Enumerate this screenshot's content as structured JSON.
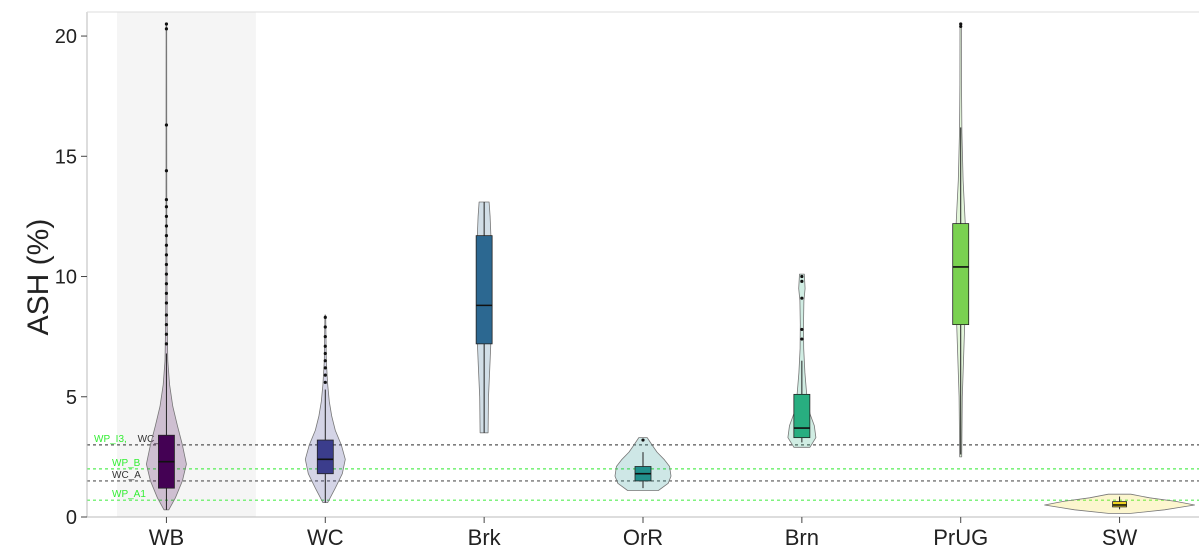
{
  "chart_data": {
    "type": "violin",
    "title": "",
    "xlabel": "",
    "ylabel": "ASH (%)",
    "ylim": [
      0,
      21
    ],
    "yticks": [
      0,
      5,
      10,
      15,
      20
    ],
    "grid": false,
    "categories": [
      "WB",
      "WC",
      "Brk",
      "OrR",
      "Brn",
      "PrUG",
      "SW"
    ],
    "highlight_category": "WB",
    "groups": [
      {
        "name": "WB",
        "color": "#440154",
        "q1": 1.2,
        "median": 2.3,
        "q3": 3.4,
        "whisker_low": 0.3,
        "whisker_high": 6.8,
        "outliers": [
          7.2,
          7.6,
          8.0,
          8.4,
          8.9,
          9.3,
          9.7,
          10.1,
          10.5,
          10.9,
          11.3,
          11.7,
          12.1,
          12.5,
          12.9,
          13.2,
          14.4,
          16.3,
          20.3,
          20.5
        ],
        "violin": [
          [
            0.3,
            0.12
          ],
          [
            0.8,
            0.45
          ],
          [
            1.5,
            0.8
          ],
          [
            2.2,
            1.0
          ],
          [
            3.0,
            0.8
          ],
          [
            3.8,
            0.55
          ],
          [
            4.6,
            0.32
          ],
          [
            5.5,
            0.16
          ],
          [
            6.5,
            0.07
          ],
          [
            8.0,
            0.04
          ],
          [
            12.0,
            0.02
          ],
          [
            20.5,
            0.015
          ]
        ]
      },
      {
        "name": "WC",
        "color": "#3b3d8c",
        "q1": 1.8,
        "median": 2.4,
        "q3": 3.2,
        "whisker_low": 0.6,
        "whisker_high": 5.3,
        "outliers": [
          5.6,
          5.9,
          6.2,
          6.5,
          6.8,
          7.1,
          7.5,
          7.9,
          8.3
        ],
        "violin": [
          [
            0.6,
            0.12
          ],
          [
            1.2,
            0.5
          ],
          [
            1.8,
            0.85
          ],
          [
            2.4,
            1.0
          ],
          [
            3.0,
            0.8
          ],
          [
            3.6,
            0.5
          ],
          [
            4.2,
            0.32
          ],
          [
            4.8,
            0.2
          ],
          [
            5.5,
            0.12
          ],
          [
            6.5,
            0.05
          ],
          [
            8.4,
            0.02
          ]
        ]
      },
      {
        "name": "Brk",
        "color": "#2c6891",
        "q1": 7.2,
        "median": 8.8,
        "q3": 11.7,
        "whisker_low": 3.5,
        "whisker_high": 13.1,
        "outliers": [],
        "violin": [
          [
            3.5,
            0.2
          ],
          [
            5.0,
            0.22
          ],
          [
            6.5,
            0.3
          ],
          [
            7.5,
            0.35
          ],
          [
            8.8,
            0.38
          ],
          [
            10.0,
            0.36
          ],
          [
            11.5,
            0.35
          ],
          [
            12.5,
            0.3
          ],
          [
            13.1,
            0.25
          ]
        ]
      },
      {
        "name": "OrR",
        "color": "#21908c",
        "q1": 1.5,
        "median": 1.8,
        "q3": 2.1,
        "whisker_low": 1.2,
        "whisker_high": 2.7,
        "outliers": [
          3.2
        ],
        "violin": [
          [
            1.1,
            0.55
          ],
          [
            1.4,
            0.9
          ],
          [
            1.7,
            1.0
          ],
          [
            2.1,
            0.95
          ],
          [
            2.4,
            0.75
          ],
          [
            2.7,
            0.5
          ],
          [
            3.0,
            0.32
          ],
          [
            3.3,
            0.15
          ]
        ]
      },
      {
        "name": "Brn",
        "color": "#28ae80",
        "q1": 3.3,
        "median": 3.7,
        "q3": 5.1,
        "whisker_low": 3.1,
        "whisker_high": 6.5,
        "outliers": [
          7.4,
          7.8,
          9.1,
          9.8,
          10.0
        ],
        "violin": [
          [
            2.9,
            0.4
          ],
          [
            3.3,
            0.7
          ],
          [
            3.8,
            0.62
          ],
          [
            4.3,
            0.4
          ],
          [
            5.0,
            0.25
          ],
          [
            6.0,
            0.15
          ],
          [
            7.0,
            0.09
          ],
          [
            8.0,
            0.08
          ],
          [
            9.0,
            0.1
          ],
          [
            9.5,
            0.16
          ],
          [
            10.1,
            0.12
          ]
        ]
      },
      {
        "name": "PrUG",
        "color": "#7ad151",
        "q1": 8.0,
        "median": 10.4,
        "q3": 12.2,
        "whisker_low": 2.6,
        "whisker_high": 16.2,
        "outliers": [
          20.4,
          20.5
        ],
        "violin": [
          [
            2.5,
            0.05
          ],
          [
            5.0,
            0.08
          ],
          [
            8.0,
            0.2
          ],
          [
            10.0,
            0.28
          ],
          [
            12.0,
            0.24
          ],
          [
            14.0,
            0.12
          ],
          [
            16.0,
            0.06
          ],
          [
            18.0,
            0.04
          ],
          [
            20.5,
            0.035
          ]
        ]
      },
      {
        "name": "SW",
        "color": "#f0d41f",
        "q1": 0.42,
        "median": 0.5,
        "q3": 0.64,
        "whisker_low": 0.32,
        "whisker_high": 0.85,
        "outliers": [],
        "violin": [
          [
            0.15,
            0.15
          ],
          [
            0.3,
            0.6
          ],
          [
            0.5,
            1.0
          ],
          [
            0.65,
            0.75
          ],
          [
            0.8,
            0.4
          ],
          [
            0.95,
            0.15
          ]
        ]
      }
    ],
    "reference_lines": [
      {
        "name": "WP_I3, WC_B",
        "y": 3.0,
        "color": "#555555",
        "style": "dashed",
        "labels": [
          {
            "text": "WP_I3,",
            "color": "#33ee33"
          },
          {
            "text": "WC_B",
            "color": "#333333"
          }
        ]
      },
      {
        "name": "WP_B",
        "y": 2.0,
        "color": "#55ee55",
        "style": "dashed",
        "labels": [
          {
            "text": "WP_B",
            "color": "#33ee33"
          }
        ]
      },
      {
        "name": "WC_A",
        "y": 1.5,
        "color": "#555555",
        "style": "dashed",
        "labels": [
          {
            "text": "WC_A",
            "color": "#333333"
          }
        ]
      },
      {
        "name": "WP_A1",
        "y": 0.7,
        "color": "#55ee55",
        "style": "dashed",
        "labels": [
          {
            "text": "WP_A1",
            "color": "#33ee33"
          }
        ]
      }
    ]
  }
}
